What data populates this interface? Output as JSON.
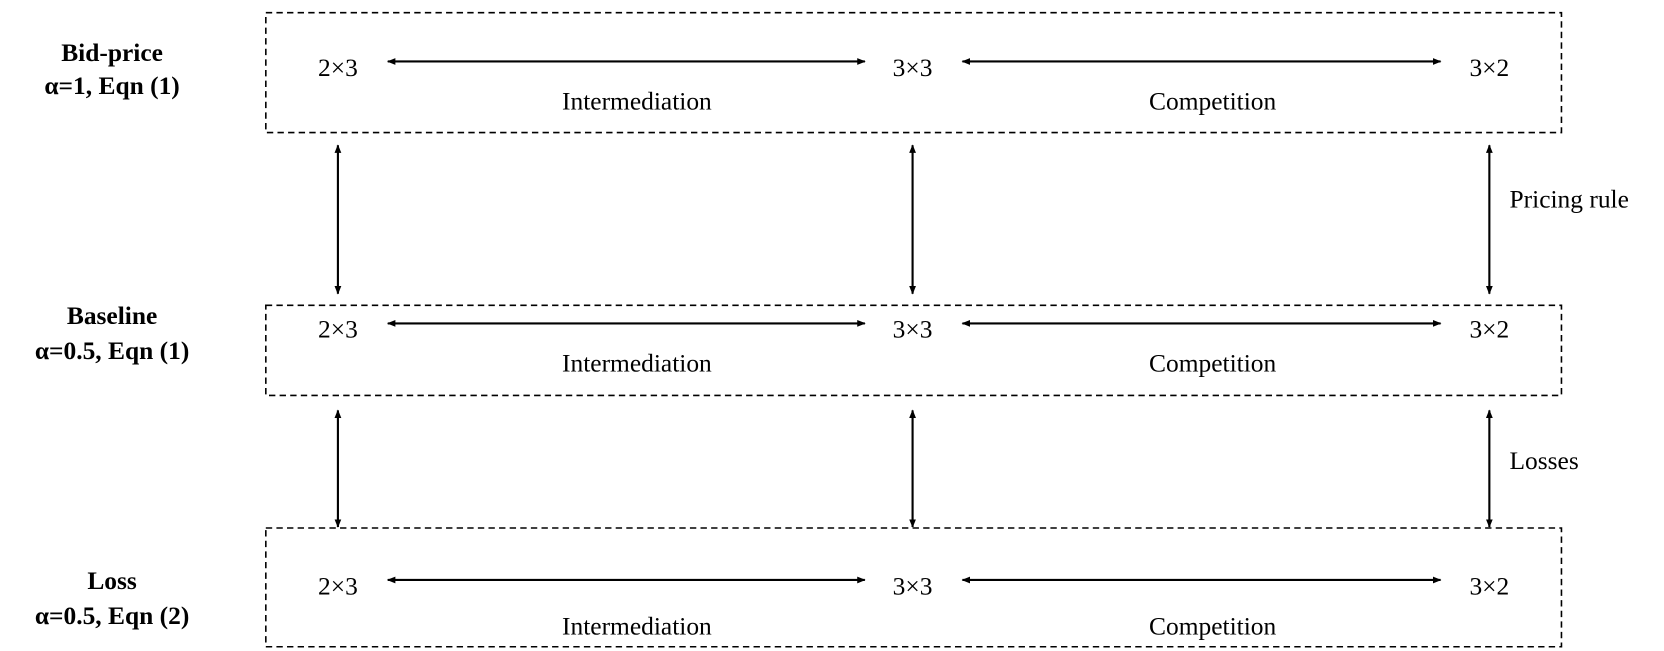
{
  "rows": [
    {
      "title": "Bid-price",
      "subtitle": "α=1, Eqn (1)",
      "nodes": [
        "2×3",
        "3×3",
        "3×2"
      ],
      "links": [
        "Intermediation",
        "Competition"
      ]
    },
    {
      "title": "Baseline",
      "subtitle": "α=0.5, Eqn (1)",
      "nodes": [
        "2×3",
        "3×3",
        "3×2"
      ],
      "links": [
        "Intermediation",
        "Competition"
      ]
    },
    {
      "title": "Loss",
      "subtitle": "α=0.5, Eqn (2)",
      "nodes": [
        "2×3",
        "3×3",
        "3×2"
      ],
      "links": [
        "Intermediation",
        "Competition"
      ]
    }
  ],
  "transitions": [
    "Pricing rule",
    "Losses"
  ]
}
